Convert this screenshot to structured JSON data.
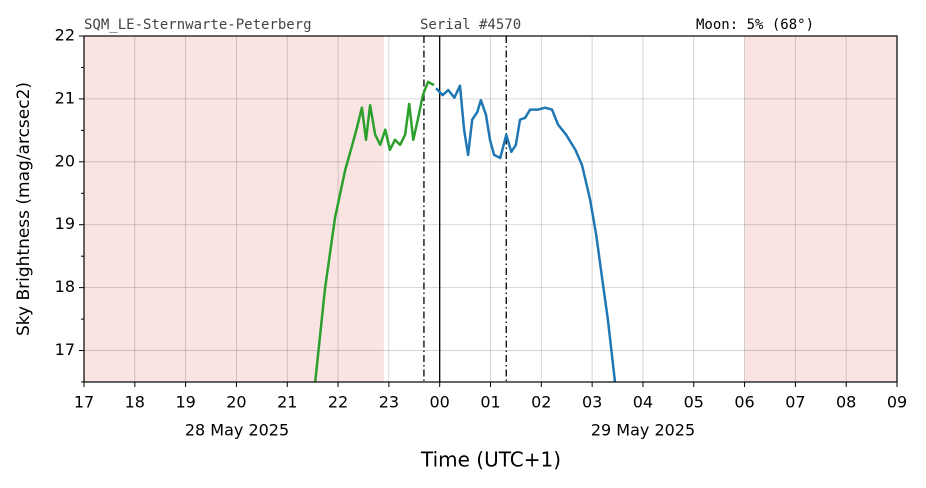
{
  "chart_data": {
    "type": "line",
    "annotations": [
      "SQM_LE-Sternwarte-Peterberg",
      "Serial #4570",
      "Moon: 5% (68°)"
    ],
    "ylabel": "Sky Brightness (mag/arcsec2)",
    "xlabel": "Time (UTC+1)",
    "date_labels": [
      "28 May 2025",
      "29 May 2025"
    ],
    "xlim": [
      17,
      33
    ],
    "xticks": [
      17,
      18,
      19,
      20,
      21,
      22,
      23,
      {
        "value": 24,
        "label": "00"
      },
      {
        "value": 25,
        "label": "01"
      },
      {
        "value": 26,
        "label": "02"
      },
      {
        "value": 27,
        "label": "03"
      },
      {
        "value": 28,
        "label": "04"
      },
      {
        "value": 29,
        "label": "05"
      },
      {
        "value": 30,
        "label": "06"
      },
      {
        "value": 31,
        "label": "07"
      },
      {
        "value": 32,
        "label": "08"
      },
      {
        "value": 33,
        "label": "09"
      }
    ],
    "ylim": [
      16.5,
      22
    ],
    "yticks": [
      17,
      18,
      19,
      20,
      21,
      22
    ],
    "y_minor_ticks": [
      16.5,
      17.5,
      18.5,
      19.5,
      20.5,
      21.5
    ],
    "grid": true,
    "shaded_regions": [
      [
        17,
        22.9
      ],
      [
        30,
        33
      ]
    ],
    "shade_color": "#f9e3e3",
    "vlines": [
      {
        "x": 23.69,
        "style": "dashdot"
      },
      {
        "x": 24,
        "style": "solid"
      },
      {
        "x": 25.31,
        "style": "dashdot"
      }
    ],
    "series": [
      {
        "color": "#2ca02c",
        "x": [
          21.55,
          21.74,
          21.94,
          22.14,
          22.28,
          22.37,
          22.47,
          22.55,
          22.63,
          22.73,
          22.83,
          22.93,
          23.02,
          23.12,
          23.22,
          23.32,
          23.4,
          23.48,
          23.57,
          23.67,
          23.77,
          23.89
        ],
        "values": [
          16.5,
          17.97,
          19.11,
          19.87,
          20.27,
          20.54,
          20.86,
          20.35,
          20.9,
          20.43,
          20.27,
          20.51,
          20.19,
          20.35,
          20.27,
          20.43,
          20.92,
          20.35,
          20.67,
          21.06,
          21.27,
          21.22
        ]
      },
      {
        "color": "#1f77b4",
        "x": [
          23.93,
          24.06,
          24.17,
          24.29,
          24.4,
          24.48,
          24.56,
          24.64,
          24.74,
          24.81,
          24.91,
          24.99,
          25.07,
          25.19,
          25.31,
          25.41,
          25.5,
          25.58,
          25.68,
          25.78,
          25.94,
          26.07,
          26.21,
          26.33,
          26.49,
          26.67,
          26.8,
          26.96,
          27.08,
          27.2,
          27.31,
          27.45
        ],
        "values": [
          21.17,
          21.06,
          21.14,
          21.02,
          21.21,
          20.51,
          20.11,
          20.67,
          20.79,
          20.98,
          20.75,
          20.35,
          20.11,
          20.06,
          20.43,
          20.16,
          20.27,
          20.67,
          20.7,
          20.83,
          20.83,
          20.86,
          20.83,
          20.59,
          20.43,
          20.19,
          19.95,
          19.4,
          18.84,
          18.13,
          17.49,
          16.5
        ]
      }
    ]
  }
}
